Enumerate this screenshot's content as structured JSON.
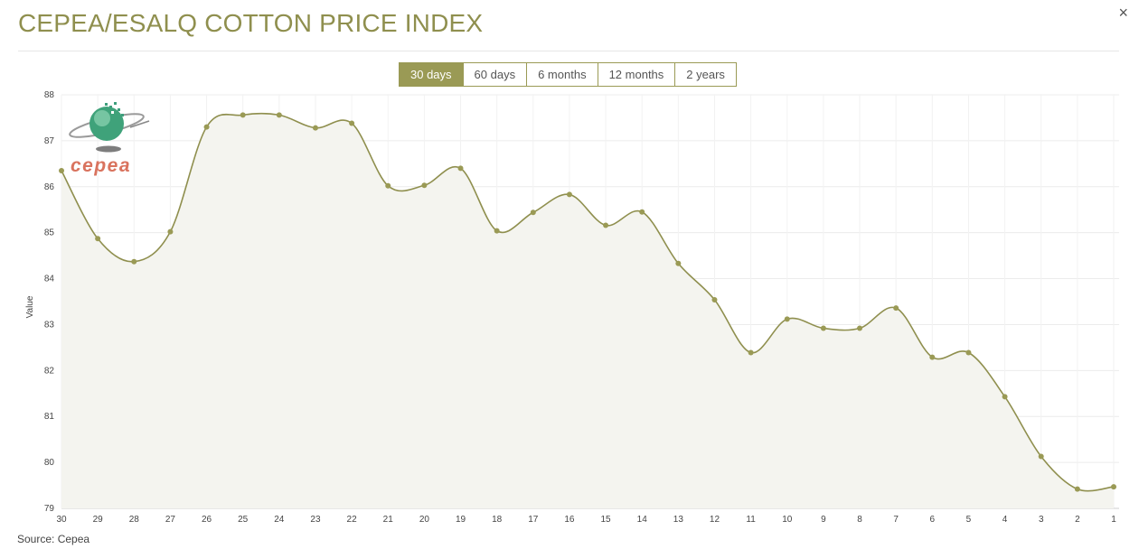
{
  "title": "CEPEA/ESALQ COTTON PRICE INDEX",
  "close_label": "×",
  "range_buttons": [
    "30 days",
    "60 days",
    "6 months",
    "12 months",
    "2 years"
  ],
  "active_range": 0,
  "logo_text": "cepea",
  "source": "Source: Cepea",
  "colors": {
    "accent": "#9a9a55",
    "line": "#8f8f4e",
    "area": "#f4f4ef",
    "grid": "#ececec"
  },
  "chart_data": {
    "type": "area",
    "ylabel": "Value",
    "xlabel": "",
    "ylim": [
      79,
      88
    ],
    "yticks": [
      79,
      80,
      81,
      82,
      83,
      84,
      85,
      86,
      87,
      88
    ],
    "grid": true,
    "categories": [
      "30",
      "29",
      "28",
      "27",
      "26",
      "25",
      "24",
      "23",
      "22",
      "21",
      "20",
      "19",
      "18",
      "17",
      "16",
      "15",
      "14",
      "13",
      "12",
      "11",
      "10",
      "9",
      "8",
      "7",
      "6",
      "5",
      "4",
      "3",
      "2",
      "1"
    ],
    "series": [
      {
        "values": [
          86.35,
          84.87,
          84.37,
          85.02,
          87.3,
          87.56,
          87.56,
          87.28,
          87.38,
          86.02,
          86.03,
          86.4,
          85.04,
          85.44,
          85.83,
          85.16,
          85.45,
          84.33,
          83.54,
          82.39,
          83.12,
          82.92,
          82.92,
          83.36,
          82.29,
          82.39,
          81.43,
          80.13,
          79.42,
          79.47
        ]
      }
    ]
  }
}
